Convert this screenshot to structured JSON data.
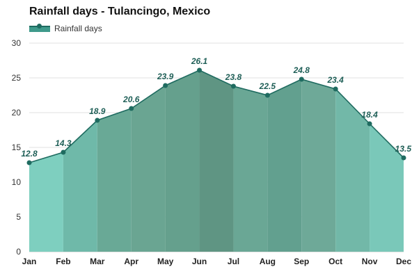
{
  "chart_data": {
    "type": "area",
    "title": "Rainfall days - Tulancingo, Mexico",
    "xlabel": "",
    "ylabel": "",
    "categories": [
      "Jan",
      "Feb",
      "Mar",
      "Apr",
      "May",
      "Jun",
      "Jul",
      "Aug",
      "Sep",
      "Oct",
      "Nov",
      "Dec"
    ],
    "series": [
      {
        "name": "Rainfall days",
        "values": [
          12.8,
          14.3,
          18.9,
          20.6,
          23.9,
          26.1,
          23.8,
          22.5,
          24.8,
          23.4,
          18.4,
          13.5
        ]
      }
    ],
    "data_labels": [
      "12.8",
      "14.3",
      "18.9",
      "20.6",
      "23.9",
      "26.1",
      "23.8",
      "22.5",
      "24.8",
      "23.4",
      "18.4",
      "13.5"
    ],
    "ylim": [
      0,
      30
    ],
    "yticks": [
      0,
      5,
      10,
      15,
      20,
      25,
      30
    ],
    "ytick_labels": [
      "0",
      "5",
      "10",
      "15",
      "20",
      "25",
      "30"
    ],
    "grid": true,
    "legend_position": "top-left",
    "colors": {
      "line": "#1f6b60",
      "data_label": "#1f5f57",
      "band_fills": [
        "#7ecfbf",
        "#6fb9a9",
        "#69a996",
        "#6aa592",
        "#65a08d",
        "#5f9583",
        "#6aa795",
        "#62a08f",
        "#6ea998",
        "#72b8a8",
        "#7ac8b9",
        "#80d2c3"
      ]
    }
  }
}
